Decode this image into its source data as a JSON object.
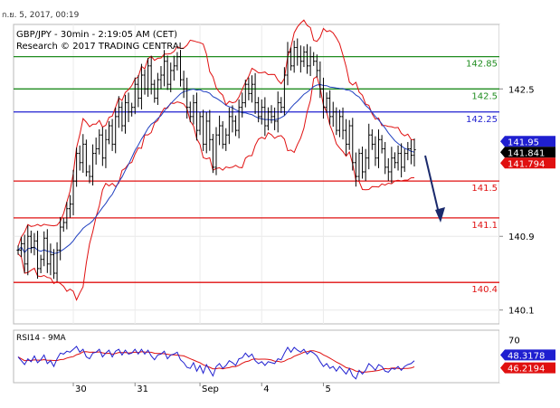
{
  "header": {
    "date_text": "ก.ย. 5, 2017, 00:19",
    "line1": "GBP/JPY - 30min - 2:19:05 AM (CET)",
    "line2": "Research © 2017 TRADING CENTRAL"
  },
  "colors": {
    "resistance": "#1f8c1f",
    "pivot": "#1f1fd0",
    "support": "#e01010",
    "bollinger": "#e01010",
    "moving_average": "#2040c0",
    "candles": "#000000",
    "rsi_line": "#1f1fd0",
    "rsi_signal": "#e01010",
    "arrow": "#1a2a6c",
    "current_price_tag": "#000000",
    "bid_tag": "#1f1fd0",
    "ask_tag": "#e01010",
    "rsi_value_tag": "#1f1fd0",
    "rsi_signal_tag": "#e01010"
  },
  "chart_data": [
    {
      "type": "candlestick",
      "title": "GBP/JPY - 30min - 2:19:05 AM (CET)",
      "y_axis_ticks": [
        "142.5",
        "140.9",
        "140.1"
      ],
      "y_ticks": [
        142.5,
        140.9,
        140.1
      ],
      "ylim": [
        139.95,
        143.2
      ],
      "x_tick_labels": [
        "30",
        "31",
        "Sep",
        "4",
        "5"
      ],
      "levels": [
        {
          "label": "142.85",
          "value": 142.85,
          "kind": "resistance"
        },
        {
          "label": "142.5",
          "value": 142.5,
          "kind": "resistance"
        },
        {
          "label": "142.25",
          "value": 142.25,
          "kind": "pivot"
        },
        {
          "label": "141.5",
          "value": 141.5,
          "kind": "support"
        },
        {
          "label": "141.1",
          "value": 141.1,
          "kind": "support"
        },
        {
          "label": "140.4",
          "value": 140.4,
          "kind": "support"
        }
      ],
      "price_tags": [
        {
          "label": "141.95",
          "value": 141.95,
          "kind": "bid"
        },
        {
          "label": "141.841",
          "value": 141.841,
          "kind": "current"
        },
        {
          "label": "141.794",
          "value": 141.794,
          "kind": "ask"
        }
      ],
      "close_series": [
        140.75,
        140.82,
        140.6,
        140.9,
        140.78,
        140.85,
        140.55,
        140.65,
        140.88,
        140.6,
        140.7,
        140.5,
        140.75,
        141.0,
        141.05,
        141.2,
        141.25,
        141.5,
        141.8,
        141.7,
        141.9,
        141.6,
        141.55,
        141.8,
        141.85,
        142.0,
        141.75,
        141.95,
        142.1,
        141.9,
        142.2,
        142.3,
        142.1,
        142.35,
        142.25,
        142.3,
        142.55,
        142.4,
        142.65,
        142.5,
        142.75,
        142.55,
        142.4,
        142.6,
        142.65,
        142.8,
        142.55,
        142.7,
        142.75,
        142.85,
        142.6,
        142.5,
        142.3,
        142.2,
        142.35,
        142.05,
        142.2,
        141.9,
        142.15,
        141.95,
        141.65,
        142.0,
        142.1,
        141.9,
        142.0,
        142.2,
        142.15,
        142.05,
        142.3,
        142.35,
        142.55,
        142.45,
        142.55,
        142.35,
        142.2,
        142.3,
        142.1,
        142.25,
        142.2,
        142.15,
        142.35,
        142.3,
        142.65,
        142.9,
        142.75,
        142.95,
        142.85,
        142.8,
        142.9,
        142.75,
        142.85,
        142.8,
        142.7,
        142.5,
        142.3,
        142.4,
        142.2,
        142.25,
        142.05,
        142.2,
        142.05,
        141.9,
        142.1,
        141.7,
        141.55,
        141.8,
        141.6,
        141.75,
        142.0,
        141.9,
        141.75,
        141.95,
        141.85,
        141.65,
        141.6,
        141.75,
        141.7,
        141.8,
        141.65,
        141.8,
        141.85,
        141.78,
        141.84
      ]
    },
    {
      "type": "line",
      "title": "RSI14 - 9MA",
      "y_axis_ticks": [
        "70"
      ],
      "y_ticks": [
        70
      ],
      "ylim": [
        25,
        80
      ],
      "value_tags": [
        {
          "label": "48.3178",
          "value": 48.3178,
          "kind": "rsi"
        },
        {
          "label": "46.2194",
          "value": 46.2194,
          "kind": "signal"
        }
      ],
      "rsi_series": [
        52,
        48,
        44,
        50,
        47,
        53,
        46,
        49,
        54,
        45,
        48,
        42,
        50,
        56,
        55,
        58,
        57,
        60,
        63,
        57,
        60,
        52,
        50,
        56,
        57,
        60,
        52,
        56,
        59,
        52,
        58,
        60,
        54,
        59,
        55,
        56,
        60,
        55,
        60,
        55,
        59,
        53,
        49,
        54,
        55,
        58,
        50,
        54,
        55,
        57,
        49,
        46,
        41,
        40,
        46,
        37,
        43,
        35,
        44,
        38,
        32,
        42,
        45,
        40,
        43,
        48,
        46,
        43,
        50,
        51,
        56,
        52,
        55,
        48,
        45,
        47,
        43,
        47,
        46,
        45,
        50,
        49,
        56,
        62,
        57,
        62,
        59,
        57,
        60,
        55,
        58,
        56,
        53,
        47,
        42,
        45,
        40,
        42,
        37,
        42,
        38,
        34,
        40,
        32,
        29,
        38,
        34,
        38,
        45,
        42,
        38,
        44,
        42,
        37,
        36,
        40,
        39,
        42,
        38,
        42,
        44,
        45,
        48
      ]
    }
  ]
}
